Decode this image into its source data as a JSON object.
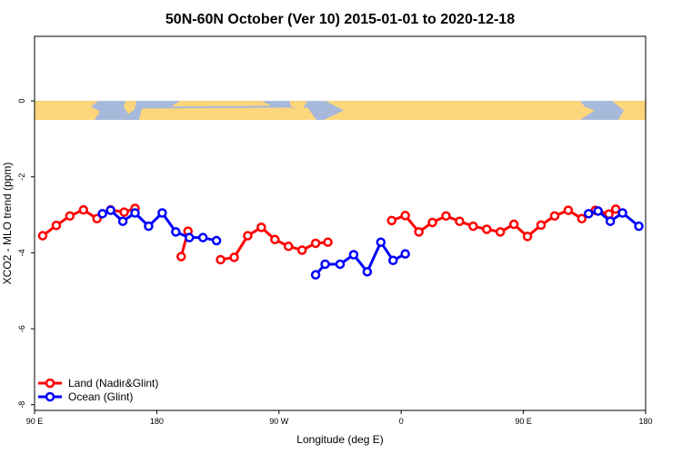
{
  "chart_data": {
    "type": "line",
    "title": "50N-60N October (Ver 10)   2015-01-01 to 2020-12-18",
    "xlabel": "Longitude (deg E)",
    "ylabel": "XCO2 - MLO trend (ppm)",
    "x_ticks": [
      {
        "value": 90,
        "label": "90 E"
      },
      {
        "value": 180,
        "label": "180"
      },
      {
        "value": 270,
        "label": "90 W"
      },
      {
        "value": 360,
        "label": "0"
      },
      {
        "value": 450,
        "label": "90 E"
      },
      {
        "value": 540,
        "label": "180"
      }
    ],
    "y_ticks": [
      {
        "value": 0,
        "label": "0"
      },
      {
        "value": -2,
        "label": "-2"
      },
      {
        "value": -4,
        "label": "-4"
      },
      {
        "value": -6,
        "label": "-6"
      },
      {
        "value": -8,
        "label": "-8"
      }
    ],
    "xlim": [
      90,
      540
    ],
    "ylim": [
      -8.15,
      1.7
    ],
    "map_band": {
      "top": 0.0,
      "bottom": -0.5,
      "ocean_color": "#a6b9da",
      "land_color": "#fdd57a"
    },
    "legend_position": "bottom-left",
    "series": [
      {
        "name": "Land (Nadir&Glint)",
        "color": "#ff0000",
        "segments": [
          [
            [
              96,
              -3.55
            ],
            [
              106,
              -3.28
            ],
            [
              116,
              -3.03
            ],
            [
              126,
              -2.87
            ],
            [
              136,
              -3.1
            ],
            [
              146,
              -2.87
            ],
            [
              156,
              -2.93
            ],
            [
              164,
              -2.83
            ]
          ],
          [
            [
              198,
              -4.1
            ],
            [
              203,
              -3.43
            ]
          ],
          [
            [
              227,
              -4.18
            ],
            [
              237,
              -4.12
            ],
            [
              247,
              -3.55
            ],
            [
              257,
              -3.33
            ],
            [
              267,
              -3.65
            ],
            [
              277,
              -3.83
            ],
            [
              287,
              -3.93
            ],
            [
              297,
              -3.75
            ],
            [
              306,
              -3.72
            ]
          ],
          [
            [
              353,
              -3.15
            ],
            [
              363,
              -3.02
            ],
            [
              373,
              -3.45
            ],
            [
              383,
              -3.2
            ],
            [
              393,
              -3.03
            ],
            [
              403,
              -3.17
            ],
            [
              413,
              -3.3
            ],
            [
              423,
              -3.38
            ],
            [
              433,
              -3.45
            ],
            [
              443,
              -3.25
            ],
            [
              453,
              -3.57
            ],
            [
              463,
              -3.27
            ],
            [
              473,
              -3.03
            ],
            [
              483,
              -2.88
            ],
            [
              493,
              -3.1
            ],
            [
              503,
              -2.88
            ],
            [
              513,
              -2.98
            ],
            [
              518,
              -2.85
            ]
          ]
        ]
      },
      {
        "name": "Ocean (Glint)",
        "color": "#0000ff",
        "segments": [
          [
            [
              140,
              -2.97
            ],
            [
              146,
              -2.88
            ],
            [
              155,
              -3.17
            ],
            [
              164,
              -2.95
            ],
            [
              174,
              -3.3
            ],
            [
              184,
              -2.95
            ],
            [
              194,
              -3.45
            ],
            [
              204,
              -3.6
            ],
            [
              214,
              -3.6
            ],
            [
              224,
              -3.68
            ]
          ],
          [
            [
              297,
              -4.58
            ],
            [
              304,
              -4.3
            ],
            [
              315,
              -4.3
            ],
            [
              325,
              -4.05
            ],
            [
              335,
              -4.5
            ],
            [
              345,
              -3.72
            ],
            [
              354,
              -4.2
            ],
            [
              363,
              -4.03
            ]
          ],
          [
            [
              498,
              -2.97
            ],
            [
              505,
              -2.9
            ],
            [
              514,
              -3.17
            ],
            [
              523,
              -2.95
            ],
            [
              535,
              -3.3
            ]
          ]
        ]
      }
    ]
  }
}
